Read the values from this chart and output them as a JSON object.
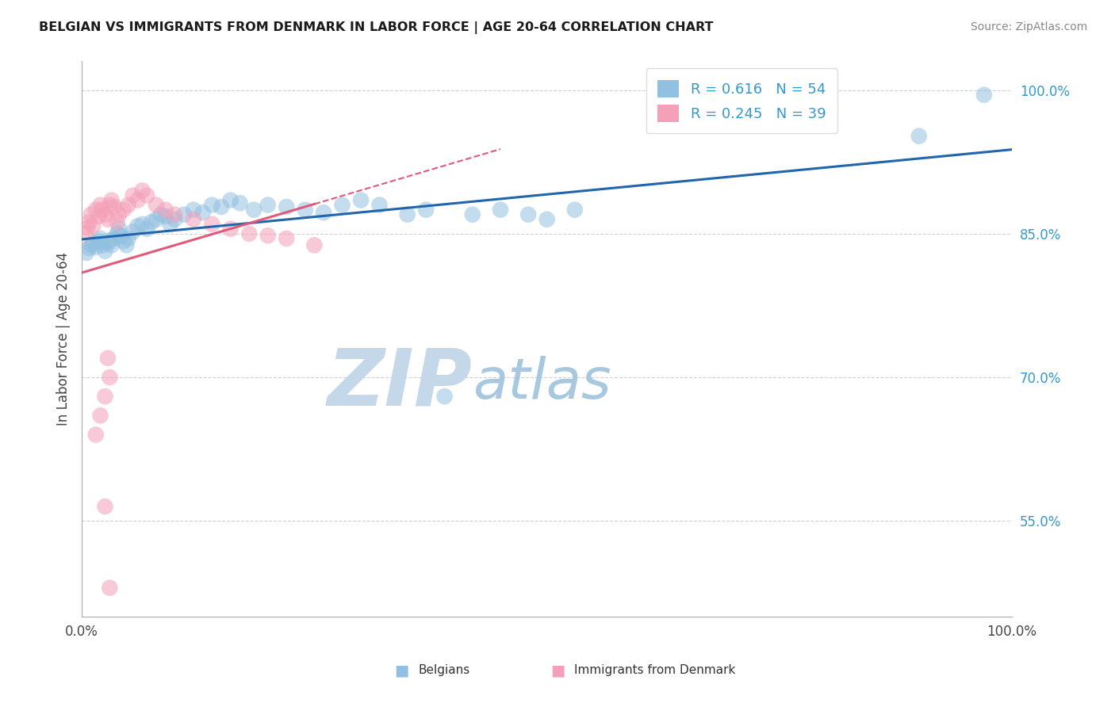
{
  "title": "BELGIAN VS IMMIGRANTS FROM DENMARK IN LABOR FORCE | AGE 20-64 CORRELATION CHART",
  "source": "Source: ZipAtlas.com",
  "ylabel": "In Labor Force | Age 20-64",
  "xlim": [
    0.0,
    1.0
  ],
  "ylim": [
    0.45,
    1.03
  ],
  "y_ticks": [
    0.55,
    0.7,
    0.85,
    1.0
  ],
  "y_tick_labels": [
    "55.0%",
    "70.0%",
    "85.0%",
    "100.0%"
  ],
  "legend_R_blue": "0.616",
  "legend_N_blue": "54",
  "legend_R_pink": "0.245",
  "legend_N_pink": "39",
  "blue_color": "#92C0E0",
  "pink_color": "#F4A0B8",
  "blue_line_color": "#2166AC",
  "pink_line_color": "#E05A7A",
  "pink_line_dash": [
    6,
    4
  ],
  "watermark_zip_color": "#C5D8EA",
  "watermark_atlas_color": "#A8C8E0",
  "background_color": "#FFFFFF",
  "grid_color": "#D0D0D0",
  "blue_x": [
    0.005,
    0.008,
    0.01,
    0.012,
    0.015,
    0.018,
    0.02,
    0.022,
    0.025,
    0.028,
    0.03,
    0.032,
    0.035,
    0.038,
    0.04,
    0.042,
    0.045,
    0.048,
    0.05,
    0.055,
    0.06,
    0.065,
    0.07,
    0.075,
    0.08,
    0.085,
    0.09,
    0.095,
    0.1,
    0.11,
    0.12,
    0.13,
    0.14,
    0.15,
    0.16,
    0.17,
    0.185,
    0.2,
    0.22,
    0.24,
    0.26,
    0.28,
    0.3,
    0.32,
    0.35,
    0.37,
    0.39,
    0.42,
    0.45,
    0.48,
    0.5,
    0.53,
    0.9,
    0.97
  ],
  "blue_y": [
    0.83,
    0.835,
    0.838,
    0.84,
    0.836,
    0.842,
    0.845,
    0.838,
    0.832,
    0.84,
    0.843,
    0.838,
    0.845,
    0.85,
    0.855,
    0.848,
    0.842,
    0.838,
    0.845,
    0.852,
    0.858,
    0.86,
    0.855,
    0.862,
    0.865,
    0.87,
    0.868,
    0.86,
    0.865,
    0.87,
    0.875,
    0.872,
    0.88,
    0.878,
    0.885,
    0.882,
    0.875,
    0.88,
    0.878,
    0.875,
    0.872,
    0.88,
    0.885,
    0.88,
    0.87,
    0.875,
    0.68,
    0.87,
    0.875,
    0.87,
    0.865,
    0.875,
    0.952,
    0.995
  ],
  "pink_x": [
    0.004,
    0.006,
    0.008,
    0.01,
    0.012,
    0.015,
    0.018,
    0.02,
    0.022,
    0.025,
    0.028,
    0.03,
    0.032,
    0.035,
    0.038,
    0.04,
    0.045,
    0.05,
    0.055,
    0.06,
    0.065,
    0.07,
    0.08,
    0.09,
    0.1,
    0.12,
    0.14,
    0.16,
    0.18,
    0.2,
    0.22,
    0.25,
    0.028,
    0.03,
    0.025,
    0.02,
    0.015,
    0.025,
    0.03
  ],
  "pink_y": [
    0.85,
    0.856,
    0.862,
    0.87,
    0.858,
    0.875,
    0.868,
    0.88,
    0.875,
    0.87,
    0.865,
    0.88,
    0.885,
    0.878,
    0.862,
    0.87,
    0.875,
    0.88,
    0.89,
    0.885,
    0.895,
    0.89,
    0.88,
    0.875,
    0.87,
    0.865,
    0.86,
    0.855,
    0.85,
    0.848,
    0.845,
    0.838,
    0.72,
    0.7,
    0.68,
    0.66,
    0.64,
    0.565,
    0.48
  ]
}
